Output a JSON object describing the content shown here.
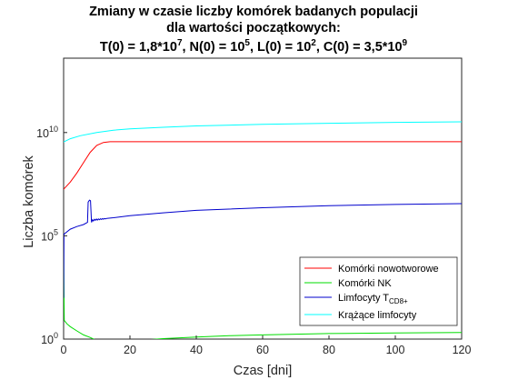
{
  "chart_data": {
    "type": "line",
    "title_lines": [
      "Zmiany w czasie liczby komórek badanych populacji",
      "dla wartości początkowych:"
    ],
    "title_line3": {
      "t_prefix": "T(0) = 1,8*10",
      "t_exp": "7",
      "n_prefix": ", N(0) = 10",
      "n_exp": "5",
      "l_prefix": ", L(0) = 10",
      "l_exp": "2",
      "c_prefix": ", C(0) = 3,5*10",
      "c_exp": "9"
    },
    "xlabel": "Czas [dni]",
    "ylabel": "Liczba komórek",
    "xlim": [
      0,
      120
    ],
    "ylim_log10": [
      0,
      13.6
    ],
    "y_scale": "log",
    "grid": false,
    "legend_position": "bottom-right",
    "x_ticks": [
      0,
      20,
      40,
      60,
      80,
      100,
      120
    ],
    "y_ticks": [
      {
        "value": 1,
        "base": "10",
        "exp": "0"
      },
      {
        "value": 100000,
        "base": "10",
        "exp": "5"
      },
      {
        "value": 10000000000,
        "base": "10",
        "exp": "10"
      }
    ],
    "series": [
      {
        "name": "Komórki nowotworowe",
        "color": "#ff0000",
        "points": [
          [
            0,
            18000000.0
          ],
          [
            2,
            40000000.0
          ],
          [
            4,
            110000000.0
          ],
          [
            6,
            350000000.0
          ],
          [
            8,
            1100000000.0
          ],
          [
            10,
            2400000000.0
          ],
          [
            12,
            3300000000.0
          ],
          [
            14,
            3600000000.0
          ],
          [
            16,
            3600000000.0
          ],
          [
            20,
            3600000000.0
          ],
          [
            40,
            3600000000.0
          ],
          [
            60,
            3600000000.0
          ],
          [
            80,
            3600000000.0
          ],
          [
            100,
            3600000000.0
          ],
          [
            120,
            3600000000.0
          ]
        ]
      },
      {
        "name": "Komórki NK",
        "color": "#00dd00",
        "points": [
          [
            0,
            100000.0
          ],
          [
            0.05,
            3000.0
          ],
          [
            0.2,
            8.0
          ],
          [
            1,
            5.5
          ],
          [
            2,
            4.0
          ],
          [
            4,
            2.5
          ],
          [
            6,
            1.6
          ],
          [
            8,
            1.2
          ],
          [
            10,
            0.85
          ],
          [
            14,
            0.65
          ],
          [
            20,
            0.8
          ],
          [
            30,
            1.05
          ],
          [
            40,
            1.25
          ],
          [
            50,
            1.45
          ],
          [
            60,
            1.6
          ],
          [
            80,
            1.85
          ],
          [
            100,
            2.0
          ],
          [
            120,
            2.1
          ]
        ]
      },
      {
        "name": "Limfocyty T",
        "name_subscript": "CD8+",
        "color": "#0000cc",
        "points": [
          [
            0,
            100
          ],
          [
            0.1,
            120000.0
          ],
          [
            2,
            210000.0
          ],
          [
            4,
            280000.0
          ],
          [
            6,
            350000.0
          ],
          [
            7.2,
            450000.0
          ],
          [
            7.4,
            4300000.0
          ],
          [
            7.8,
            5300000.0
          ],
          [
            8.1,
            5000000.0
          ],
          [
            8.4,
            450000.0
          ],
          [
            8.7,
            600000.0
          ],
          [
            9.0,
            520000.0
          ],
          [
            9.3,
            630000.0
          ],
          [
            9.6,
            560000.0
          ],
          [
            9.9,
            650000.0
          ],
          [
            10.2,
            580000.0
          ],
          [
            10.5,
            660000.0
          ],
          [
            10.8,
            600000.0
          ],
          [
            11.1,
            670000.0
          ],
          [
            11.4,
            620000.0
          ],
          [
            11.7,
            680000.0
          ],
          [
            12.0,
            640000.0
          ],
          [
            12.3,
            690000.0
          ],
          [
            12.6,
            660000.0
          ],
          [
            13,
            700000.0
          ],
          [
            15,
            750000.0
          ],
          [
            20,
            950000.0
          ],
          [
            30,
            1300000.0
          ],
          [
            40,
            1700000.0
          ],
          [
            60,
            2300000.0
          ],
          [
            80,
            2900000.0
          ],
          [
            100,
            3300000.0
          ],
          [
            120,
            3600000.0
          ]
        ]
      },
      {
        "name": "Krążące limfocyty",
        "color": "#00ffff",
        "points": [
          [
            0,
            3500000000.0
          ],
          [
            2,
            5000000000.0
          ],
          [
            5,
            7000000000.0
          ],
          [
            10,
            10000000000.0
          ],
          [
            15,
            13000000000.0
          ],
          [
            20,
            15000000000.0
          ],
          [
            30,
            18000000000.0
          ],
          [
            40,
            21000000000.0
          ],
          [
            60,
            25000000000.0
          ],
          [
            80,
            28000000000.0
          ],
          [
            100,
            31000000000.0
          ],
          [
            120,
            33000000000.0
          ]
        ]
      }
    ]
  }
}
